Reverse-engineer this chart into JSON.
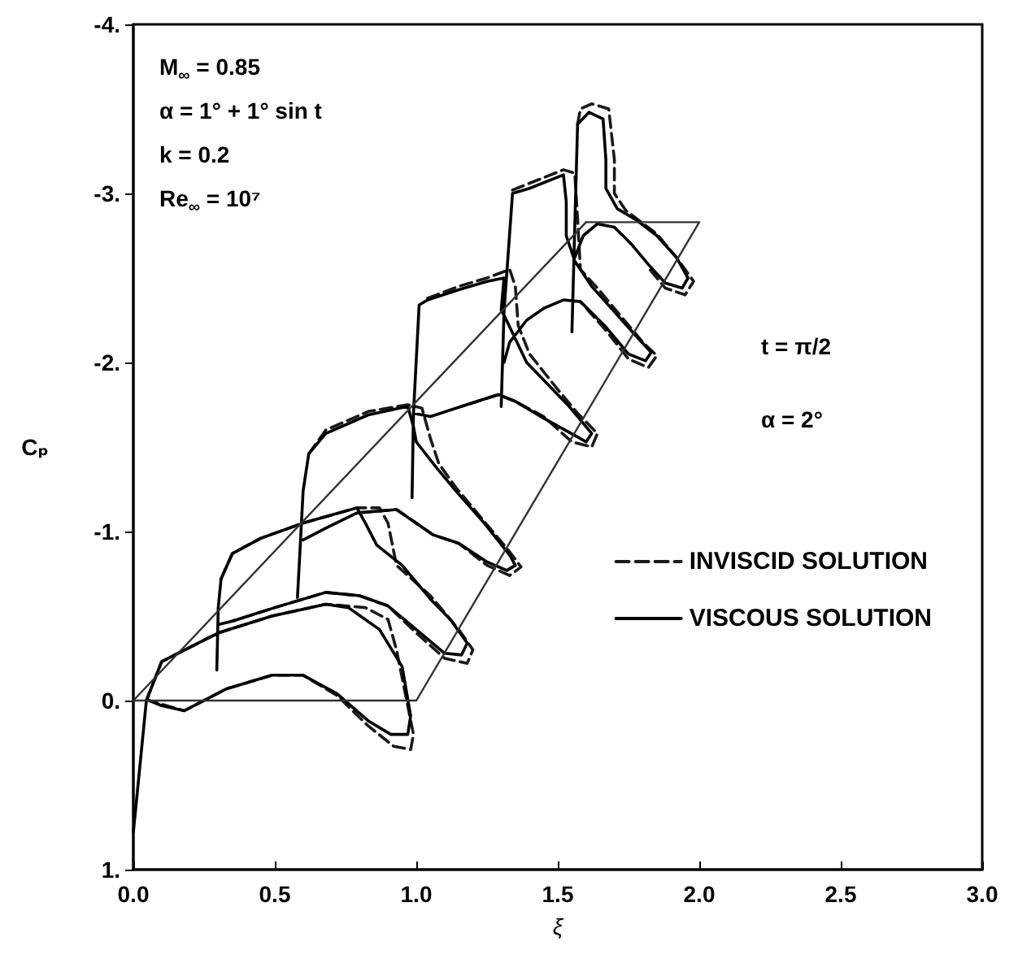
{
  "chart_data": {
    "type": "line",
    "xlabel": "ξ",
    "ylabel": "Cₚ",
    "xlim": [
      0,
      3
    ],
    "ylim": [
      1,
      -4
    ],
    "xticks": [
      {
        "value": 0,
        "label": "0.0"
      },
      {
        "value": 0.5,
        "label": "0.5"
      },
      {
        "value": 1,
        "label": "1.0"
      },
      {
        "value": 1.5,
        "label": "1.5"
      },
      {
        "value": 2,
        "label": "2.0"
      },
      {
        "value": 2.5,
        "label": "2.5"
      },
      {
        "value": 3,
        "label": "3.0"
      }
    ],
    "yticks": [
      {
        "value": -4,
        "label": "-4."
      },
      {
        "value": -3,
        "label": "-3."
      },
      {
        "value": -2,
        "label": "-2."
      },
      {
        "value": -1,
        "label": "-1."
      },
      {
        "value": 0,
        "label": "0."
      },
      {
        "value": 1,
        "label": "1."
      }
    ],
    "legend": "right",
    "marker": "none",
    "annotations": [
      "M$_{∞}$ = 0.85",
      "α = 1° + 1° sin t",
      "k = 0.2",
      "Re$_{∞}$ = 10⁷",
      "t = π/2",
      "α = 2°"
    ],
    "series": [
      {
        "name": "INVISCID SOLUTION",
        "color": "#1a1a1a",
        "line_style": "dashed",
        "x": [
          0.046,
          0.1,
          0.3,
          0.49,
          0.68,
          0.82,
          0.9,
          0.93,
          0.96,
          0.99,
          0.98,
          0.92,
          0.83,
          0.72,
          0.6,
          0.49,
          0.33,
          0.18,
          0.056,
          null,
          0.31,
          0.35,
          0.45,
          0.6,
          0.79,
          0.87,
          0.9,
          0.93,
          1.05,
          1.15,
          1.2,
          1.18,
          1.1,
          1.0,
          0.9,
          0.8,
          0.68,
          0.5,
          0.35,
          null,
          0.62,
          0.68,
          0.83,
          0.97,
          1.02,
          1.05,
          1.08,
          1.14,
          1.24,
          1.33,
          1.37,
          1.33,
          1.25,
          1.15,
          1.06,
          0.93,
          0.79,
          null,
          1.04,
          1.15,
          1.25,
          1.33,
          1.35,
          1.36,
          1.4,
          1.5,
          1.57,
          1.64,
          1.62,
          1.55,
          1.45,
          1.35,
          1.29,
          1.16,
          null,
          1.34,
          1.4,
          1.52,
          1.56,
          1.57,
          1.58,
          1.64,
          1.72,
          1.8,
          1.85,
          1.82,
          1.75,
          1.67,
          1.58,
          null,
          1.57,
          1.58,
          1.62,
          1.68,
          1.7,
          1.7,
          1.74,
          1.85,
          1.92,
          1.98,
          1.95,
          1.88,
          1.82
        ],
        "values": [
          0,
          -0.23,
          -0.4,
          -0.5,
          -0.57,
          -0.55,
          -0.48,
          -0.3,
          -0.05,
          0.2,
          0.29,
          0.27,
          0.15,
          -0.03,
          -0.15,
          -0.15,
          -0.07,
          0.06,
          0,
          null,
          -0.72,
          -0.87,
          -0.96,
          -1.05,
          -1.14,
          -1.14,
          -1.05,
          -0.8,
          -0.62,
          -0.42,
          -0.3,
          -0.22,
          -0.25,
          -0.4,
          -0.56,
          -0.62,
          -0.64,
          -0.55,
          -0.47,
          null,
          -1.46,
          -1.6,
          -1.71,
          -1.75,
          -1.73,
          -1.55,
          -1.4,
          -1.26,
          -1.06,
          -0.88,
          -0.79,
          -0.74,
          -0.8,
          -0.93,
          -0.98,
          -1.13,
          -1.11,
          null,
          -2.38,
          -2.45,
          -2.5,
          -2.55,
          -2.45,
          -2.22,
          -2.05,
          -1.84,
          -1.7,
          -1.58,
          -1.5,
          -1.53,
          -1.68,
          -1.77,
          -1.81,
          -1.74,
          null,
          -3.02,
          -3.06,
          -3.14,
          -3.12,
          -2.85,
          -2.55,
          -2.44,
          -2.28,
          -2.12,
          -2.04,
          -1.97,
          -2.02,
          -2.19,
          -2.36,
          null,
          -3.41,
          -3.5,
          -3.53,
          -3.5,
          -3.2,
          -3.0,
          -2.9,
          -2.76,
          -2.62,
          -2.48,
          -2.4,
          -2.44,
          -2.56
        ]
      },
      {
        "name": "VISCOUS SOLUTION",
        "color": "#000000",
        "line_style": "solid",
        "x": [
          0,
          0.046,
          0.1,
          0.3,
          0.49,
          0.68,
          0.76,
          0.87,
          0.95,
          0.98,
          0.97,
          0.91,
          0.83,
          0.72,
          0.6,
          0.49,
          0.33,
          0.18,
          0.1,
          0.056,
          null,
          0.295,
          0.3,
          0.31,
          0.35,
          0.45,
          0.6,
          0.79,
          0.82,
          0.86,
          0.95,
          1.05,
          1.12,
          1.18,
          1.16,
          1.1,
          1.0,
          0.9,
          0.8,
          0.68,
          0.5,
          0.35,
          0.3,
          null,
          0.58,
          0.59,
          0.6,
          0.62,
          0.68,
          0.83,
          0.97,
          0.99,
          1.0,
          1.07,
          1.14,
          1.24,
          1.33,
          1.35,
          1.32,
          1.25,
          1.15,
          1.06,
          0.93,
          0.79,
          0.68,
          0.6,
          null,
          0.985,
          0.99,
          1.01,
          1.04,
          1.15,
          1.25,
          1.31,
          1.3,
          1.31,
          1.39,
          1.54,
          1.62,
          1.6,
          1.58,
          1.44,
          1.35,
          1.29,
          1.16,
          1.05,
          0.99,
          null,
          1.3,
          1.31,
          1.34,
          1.4,
          1.52,
          1.53,
          1.53,
          1.56,
          1.62,
          1.7,
          1.78,
          1.83,
          1.81,
          1.75,
          1.67,
          1.58,
          1.52,
          1.45,
          1.39,
          1.33,
          1.31,
          null,
          1.55,
          1.56,
          1.57,
          1.61,
          1.66,
          1.67,
          1.67,
          1.71,
          1.78,
          1.85,
          1.92,
          1.96,
          1.94,
          1.88,
          1.82,
          1.76,
          1.7,
          1.64,
          1.59,
          1.56
        ],
        "values": [
          0.78,
          0,
          -0.23,
          -0.4,
          -0.5,
          -0.57,
          -0.55,
          -0.42,
          -0.2,
          0.09,
          0.2,
          0.2,
          0.12,
          -0.04,
          -0.15,
          -0.15,
          -0.07,
          0.06,
          0.03,
          0,
          null,
          -0.18,
          -0.55,
          -0.72,
          -0.87,
          -0.96,
          -1.05,
          -1.14,
          -1.05,
          -0.92,
          -0.8,
          -0.6,
          -0.48,
          -0.34,
          -0.27,
          -0.28,
          -0.42,
          -0.56,
          -0.62,
          -0.64,
          -0.55,
          -0.47,
          -0.45,
          null,
          -0.61,
          -0.92,
          -1.24,
          -1.46,
          -1.58,
          -1.69,
          -1.74,
          -1.62,
          -1.53,
          -1.38,
          -1.24,
          -1.05,
          -0.86,
          -0.8,
          -0.77,
          -0.82,
          -0.93,
          -0.98,
          -1.13,
          -1.11,
          -1.02,
          -0.95,
          null,
          -1.2,
          -1.7,
          -2.34,
          -2.37,
          -2.43,
          -2.48,
          -2.5,
          -2.31,
          -2.28,
          -2.0,
          -1.74,
          -1.58,
          -1.53,
          -1.55,
          -1.68,
          -1.77,
          -1.81,
          -1.74,
          -1.68,
          -1.7,
          null,
          -1.74,
          -2.3,
          -3.0,
          -3.03,
          -3.11,
          -2.95,
          -2.75,
          -2.6,
          -2.45,
          -2.3,
          -2.15,
          -2.06,
          -2.01,
          -2.05,
          -2.21,
          -2.36,
          -2.37,
          -2.32,
          -2.25,
          -2.12,
          -2.0,
          null,
          -2.18,
          -2.8,
          -3.41,
          -3.48,
          -3.44,
          -3.2,
          -3.03,
          -2.91,
          -2.84,
          -2.75,
          -2.62,
          -2.5,
          -2.44,
          -2.47,
          -2.58,
          -2.7,
          -2.8,
          -2.82,
          -2.75,
          -2.62
        ]
      },
      {
        "color": "#333333",
        "line_style": "solid",
        "x": [
          1.6,
          0,
          1
        ],
        "values": [
          -2.83,
          0,
          0
        ]
      },
      {
        "color": "#333333",
        "line_style": "solid",
        "x": [
          1,
          2,
          1.6
        ],
        "values": [
          0,
          -2.83,
          -2.83
        ]
      }
    ]
  }
}
